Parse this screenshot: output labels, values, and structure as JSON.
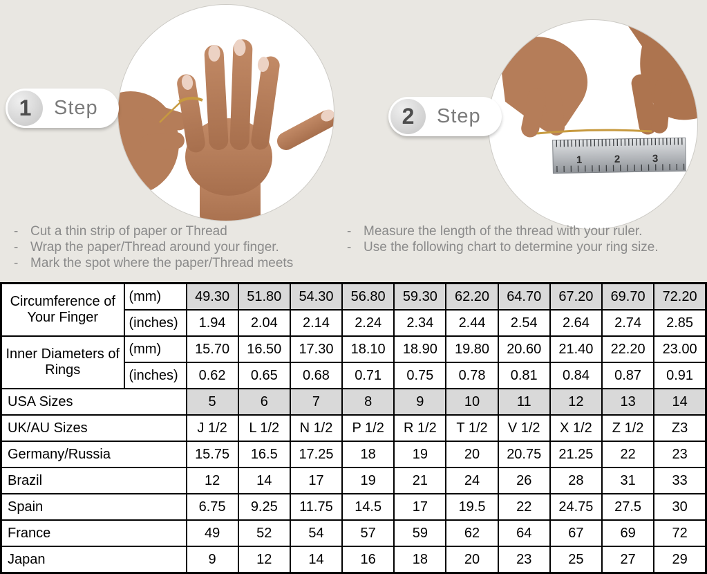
{
  "page": {
    "background": "#e9e7e2",
    "bullet": "-"
  },
  "colors": {
    "shaded_cell": "#d9d9d9",
    "table_border": "#000000",
    "instruction_text": "#8a8a8a",
    "thread_gold": "#c79a3f",
    "skin_tone": "#b57d59",
    "ruler_silver": "#b9bcc0"
  },
  "steps": [
    {
      "number": "1",
      "label": "Step",
      "illustration": "hand-with-thread-around-finger",
      "instructions": [
        "Cut a thin strip of paper or Thread",
        "Wrap the paper/Thread around your finger.",
        "Mark the spot where the paper/Thread meets"
      ]
    },
    {
      "number": "2",
      "label": "Step",
      "illustration": "measuring-thread-with-ruler",
      "instructions": [
        "Measure the length of the thread with your ruler.",
        "Use the following chart to determine your ring size."
      ]
    }
  ],
  "table": {
    "groups": [
      {
        "label": "Circumference of Your Finger",
        "rows": [
          {
            "unit": "(mm)",
            "shaded": true,
            "values": [
              "49.30",
              "51.80",
              "54.30",
              "56.80",
              "59.30",
              "62.20",
              "64.70",
              "67.20",
              "69.70",
              "72.20"
            ]
          },
          {
            "unit": "(inches)",
            "shaded": false,
            "values": [
              "1.94",
              "2.04",
              "2.14",
              "2.24",
              "2.34",
              "2.44",
              "2.54",
              "2.64",
              "2.74",
              "2.85"
            ]
          }
        ]
      },
      {
        "label": "Inner Diameters of Rings",
        "rows": [
          {
            "unit": "(mm)",
            "shaded": false,
            "values": [
              "15.70",
              "16.50",
              "17.30",
              "18.10",
              "18.90",
              "19.80",
              "20.60",
              "21.40",
              "22.20",
              "23.00"
            ]
          },
          {
            "unit": "(inches)",
            "shaded": false,
            "values": [
              "0.62",
              "0.65",
              "0.68",
              "0.71",
              "0.75",
              "0.78",
              "0.81",
              "0.84",
              "0.87",
              "0.91"
            ]
          }
        ]
      }
    ],
    "size_rows": [
      {
        "label": "USA Sizes",
        "shaded": true,
        "values": [
          "5",
          "6",
          "7",
          "8",
          "9",
          "10",
          "11",
          "12",
          "13",
          "14"
        ]
      },
      {
        "label": "UK/AU Sizes",
        "shaded": false,
        "values": [
          "J 1/2",
          "L 1/2",
          "N 1/2",
          "P 1/2",
          "R 1/2",
          "T 1/2",
          "V 1/2",
          "X 1/2",
          "Z 1/2",
          "Z3"
        ]
      },
      {
        "label": "Germany/Russia",
        "shaded": false,
        "values": [
          "15.75",
          "16.5",
          "17.25",
          "18",
          "19",
          "20",
          "20.75",
          "21.25",
          "22",
          "23"
        ]
      },
      {
        "label": "Brazil",
        "shaded": false,
        "values": [
          "12",
          "14",
          "17",
          "19",
          "21",
          "24",
          "26",
          "28",
          "31",
          "33"
        ]
      },
      {
        "label": "Spain",
        "shaded": false,
        "values": [
          "6.75",
          "9.25",
          "11.75",
          "14.5",
          "17",
          "19.5",
          "22",
          "24.75",
          "27.5",
          "30"
        ]
      },
      {
        "label": "France",
        "shaded": false,
        "values": [
          "49",
          "52",
          "54",
          "57",
          "59",
          "62",
          "64",
          "67",
          "69",
          "72"
        ]
      },
      {
        "label": "Japan",
        "shaded": false,
        "values": [
          "9",
          "12",
          "14",
          "16",
          "18",
          "20",
          "23",
          "25",
          "27",
          "29"
        ]
      }
    ]
  }
}
